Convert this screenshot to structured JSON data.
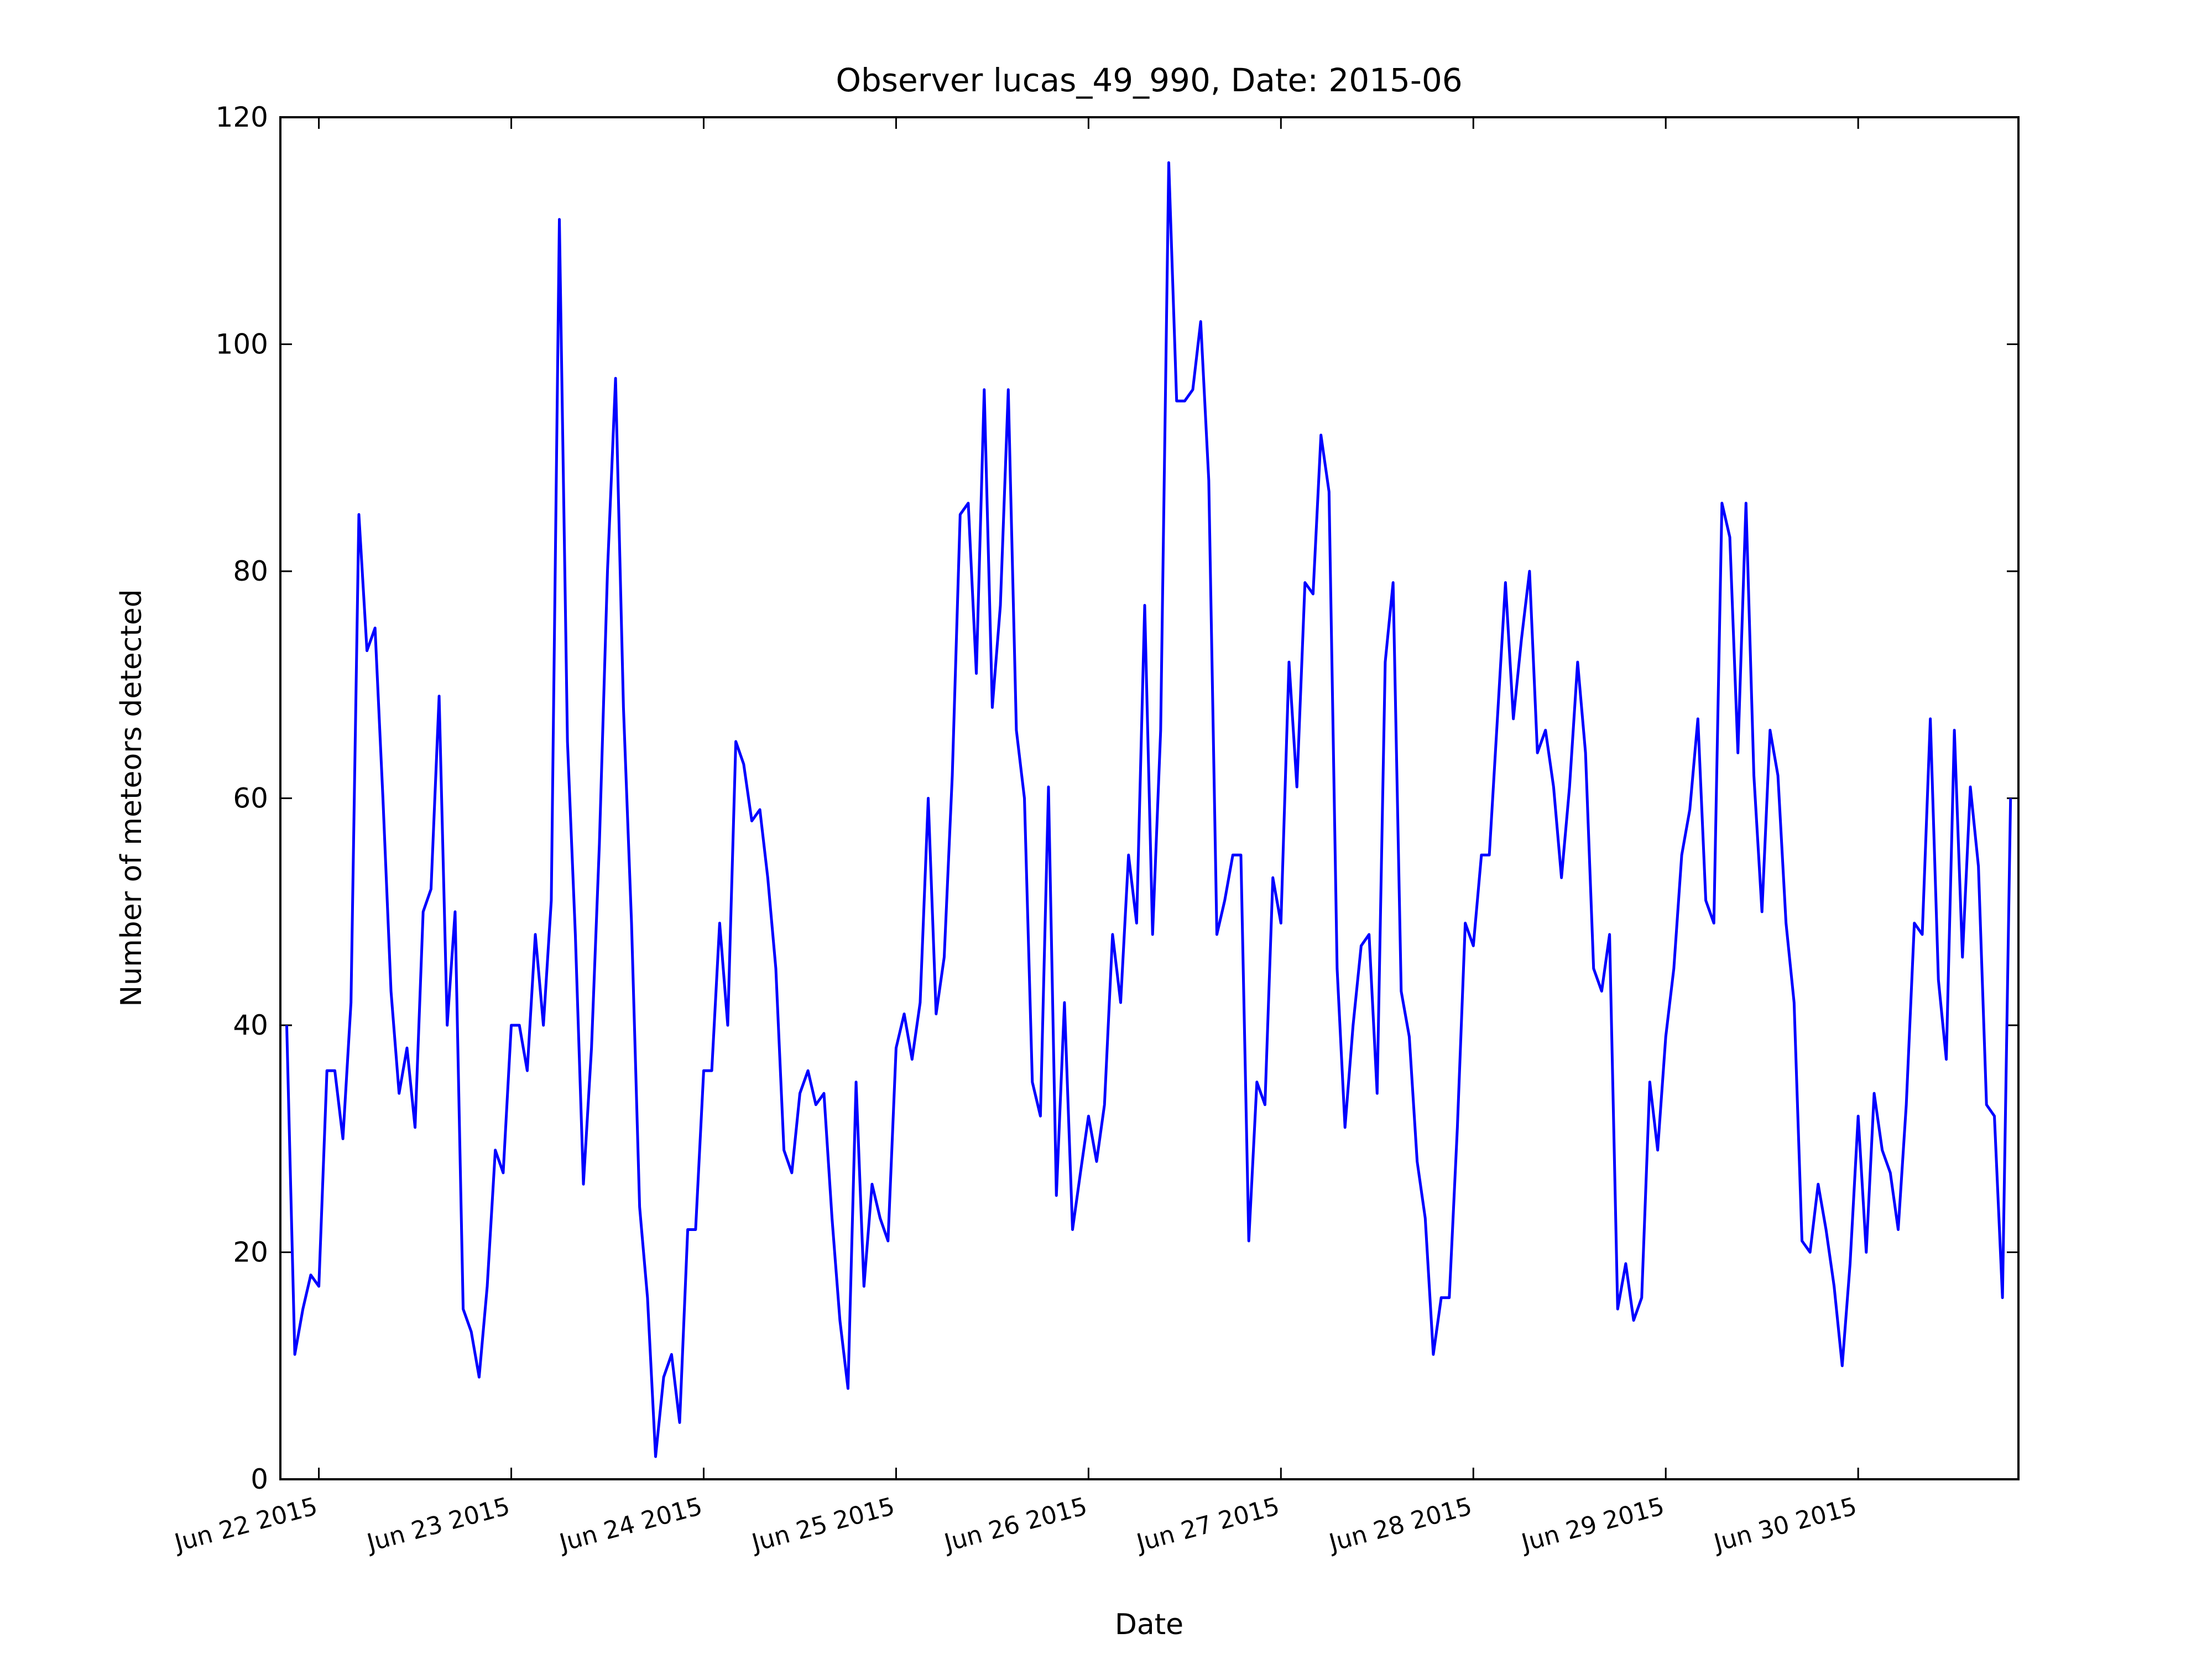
{
  "chart_data": {
    "type": "line",
    "title": "Observer lucas_49_990, Date: 2015-06",
    "x_label": "Date",
    "y_label": "Number of meteors detected",
    "color": "#0000ff",
    "x": [
      21.833,
      21.875,
      21.917,
      21.958,
      22,
      22.042,
      22.083,
      22.125,
      22.167,
      22.208,
      22.25,
      22.292,
      22.333,
      22.375,
      22.417,
      22.458,
      22.5,
      22.542,
      22.583,
      22.625,
      22.667,
      22.708,
      22.75,
      22.792,
      22.833,
      22.875,
      22.917,
      22.958,
      23,
      23.042,
      23.083,
      23.125,
      23.167,
      23.208,
      23.25,
      23.292,
      23.333,
      23.375,
      23.417,
      23.458,
      23.5,
      23.542,
      23.583,
      23.625,
      23.667,
      23.708,
      23.75,
      23.792,
      23.833,
      23.875,
      23.917,
      23.958,
      24,
      24.042,
      24.083,
      24.125,
      24.167,
      24.208,
      24.25,
      24.292,
      24.333,
      24.375,
      24.417,
      24.458,
      24.5,
      24.542,
      24.583,
      24.625,
      24.667,
      24.708,
      24.75,
      24.792,
      24.833,
      24.875,
      24.917,
      24.958,
      25,
      25.042,
      25.083,
      25.125,
      25.167,
      25.208,
      25.25,
      25.292,
      25.333,
      25.375,
      25.417,
      25.458,
      25.5,
      25.542,
      25.583,
      25.625,
      25.667,
      25.708,
      25.75,
      25.792,
      25.833,
      25.875,
      25.917,
      25.958,
      26,
      26.042,
      26.083,
      26.125,
      26.167,
      26.208,
      26.25,
      26.292,
      26.333,
      26.375,
      26.417,
      26.458,
      26.5,
      26.542,
      26.583,
      26.625,
      26.667,
      26.708,
      26.75,
      26.792,
      26.833,
      26.875,
      26.917,
      26.958,
      27,
      27.042,
      27.083,
      27.125,
      27.167,
      27.208,
      27.25,
      27.292,
      27.333,
      27.375,
      27.417,
      27.458,
      27.5,
      27.542,
      27.583,
      27.625,
      27.667,
      27.708,
      27.75,
      27.792,
      27.833,
      27.875,
      27.917,
      27.958,
      28,
      28.042,
      28.083,
      28.125,
      28.167,
      28.208,
      28.25,
      28.292,
      28.333,
      28.375,
      28.417,
      28.458,
      28.5,
      28.542,
      28.583,
      28.625,
      28.667,
      28.708,
      28.75,
      28.792,
      28.833,
      28.875,
      28.917,
      28.958,
      29,
      29.042,
      29.083,
      29.125,
      29.167,
      29.208,
      29.25,
      29.292,
      29.333,
      29.375,
      29.417,
      29.458,
      29.5,
      29.542,
      29.583,
      29.625,
      29.667,
      29.708,
      29.75,
      29.792,
      29.833,
      29.875,
      29.917,
      29.958,
      30,
      30.042,
      30.083,
      30.125,
      30.167,
      30.208,
      30.25,
      30.292,
      30.333,
      30.375,
      30.417,
      30.458,
      30.5,
      30.542,
      30.583,
      30.625,
      30.667,
      30.708,
      30.75,
      30.792
    ],
    "values": [
      40,
      11,
      15,
      18,
      17,
      36,
      36,
      30,
      42,
      85,
      73,
      75,
      60,
      43,
      34,
      38,
      31,
      50,
      52,
      69,
      40,
      50,
      15,
      13,
      9,
      17,
      29,
      27,
      40,
      40,
      36,
      48,
      40,
      51,
      111,
      65,
      48,
      26,
      38,
      56,
      80,
      97,
      68,
      49,
      24,
      16,
      2,
      9,
      11,
      5,
      22,
      22,
      36,
      36,
      49,
      40,
      65,
      63,
      58,
      59,
      53,
      45,
      29,
      27,
      34,
      36,
      33,
      34,
      23,
      14,
      8,
      35,
      17,
      26,
      23,
      21,
      38,
      41,
      37,
      42,
      60,
      41,
      46,
      62,
      85,
      86,
      71,
      96,
      68,
      77,
      96,
      66,
      60,
      35,
      32,
      61,
      25,
      42,
      22,
      27,
      32,
      28,
      33,
      48,
      42,
      55,
      49,
      77,
      48,
      66,
      116,
      95,
      95,
      96,
      102,
      88,
      48,
      51,
      55,
      55,
      21,
      35,
      33,
      53,
      49,
      72,
      61,
      79,
      78,
      92,
      87,
      45,
      31,
      40,
      47,
      48,
      34,
      72,
      79,
      43,
      39,
      28,
      23,
      11,
      16,
      16,
      31,
      49,
      47,
      55,
      55,
      67,
      79,
      67,
      74,
      80,
      64,
      66,
      61,
      53,
      61,
      72,
      64,
      45,
      43,
      48,
      15,
      19,
      14,
      16,
      35,
      29,
      39,
      45,
      55,
      59,
      67,
      51,
      49,
      86,
      83,
      64,
      86,
      62,
      50,
      66,
      62,
      49,
      42,
      21,
      20,
      26,
      22,
      17,
      10,
      19,
      32,
      20,
      34,
      29,
      27,
      22,
      33,
      49,
      48,
      67,
      44,
      37,
      66,
      46,
      61,
      54,
      33,
      32,
      16,
      60
    ],
    "xlim": [
      21.8,
      30.833
    ],
    "xticks": [
      {
        "value": 22,
        "label": "Jun 22 2015"
      },
      {
        "value": 23,
        "label": "Jun 23 2015"
      },
      {
        "value": 24,
        "label": "Jun 24 2015"
      },
      {
        "value": 25,
        "label": "Jun 25 2015"
      },
      {
        "value": 26,
        "label": "Jun 26 2015"
      },
      {
        "value": 27,
        "label": "Jun 27 2015"
      },
      {
        "value": 28,
        "label": "Jun 28 2015"
      },
      {
        "value": 29,
        "label": "Jun 29 2015"
      },
      {
        "value": 30,
        "label": "Jun 30 2015"
      }
    ],
    "ylim": [
      0,
      120
    ],
    "yticks": [
      0,
      20,
      40,
      60,
      80,
      100,
      120
    ],
    "grid": false
  }
}
